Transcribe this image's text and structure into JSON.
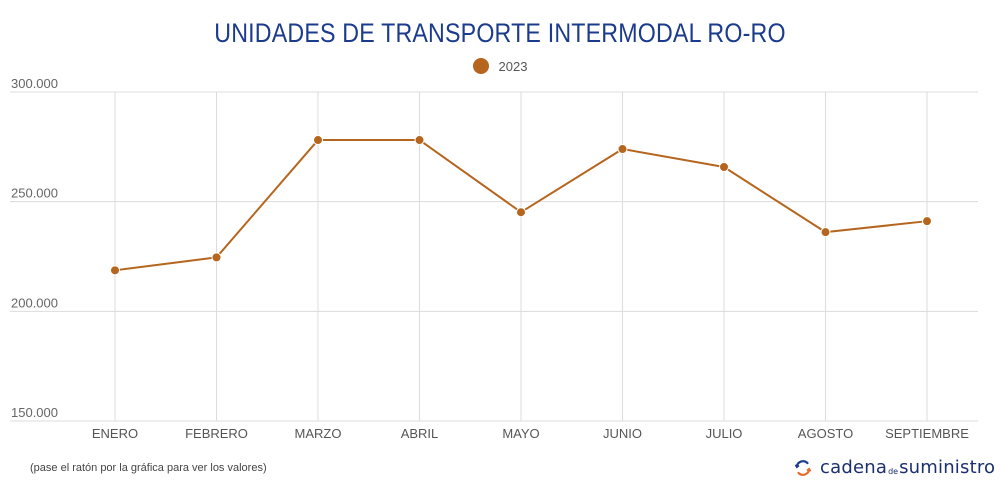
{
  "title": "UNIDADES DE TRANSPORTE INTERMODAL RO-RO",
  "legend": [
    {
      "label": "2023",
      "color": "#b5651d"
    }
  ],
  "footer": {
    "note": "(pase el ratón por la gráfica para ver los valores)",
    "brand_part1": "cadena",
    "brand_part2": "de",
    "brand_part3": "suministro",
    "brand_icon": "circular-arrows-logo-icon"
  },
  "chart_data": {
    "type": "line",
    "title": "UNIDADES DE TRANSPORTE INTERMODAL RO-RO",
    "xlabel": "",
    "ylabel": "",
    "categories": [
      "ENERO",
      "FEBRERO",
      "MARZO",
      "ABRIL",
      "MAYO",
      "JUNIO",
      "JULIO",
      "AGOSTO",
      "SEPTIEMBRE"
    ],
    "series": [
      {
        "name": "2023",
        "color": "#b5651d",
        "values": [
          218700,
          224600,
          278100,
          278100,
          245200,
          274000,
          265800,
          236100,
          241100
        ]
      }
    ],
    "ylim": [
      150000,
      300000
    ],
    "yticks": [
      150000,
      200000,
      250000,
      300000
    ],
    "ytick_labels": [
      "150.000",
      "200.000",
      "250.000",
      "300.000"
    ],
    "grid": true,
    "legend_position": "top-center"
  }
}
